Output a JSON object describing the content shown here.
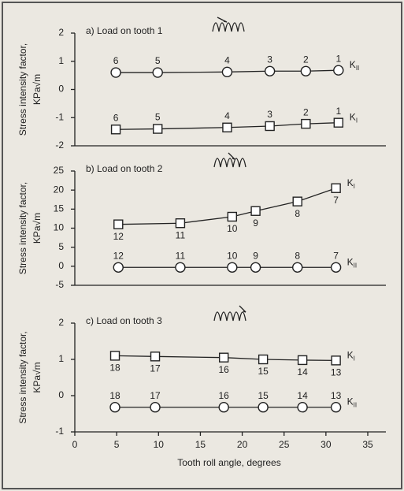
{
  "chart_data": [
    {
      "type": "line",
      "title": "a) Load on tooth 1",
      "ylabel": [
        "Stress intensity factor,",
        "KPa√m"
      ],
      "xlim": [
        0,
        35
      ],
      "ylim": [
        -2,
        2
      ],
      "yticks": [
        -2,
        -1,
        0,
        1,
        2
      ],
      "series": [
        {
          "name": "K",
          "subscript": "II",
          "marker": "circle",
          "color": "#222222",
          "x": [
            4.9,
            9.9,
            18.2,
            23.3,
            27.6,
            31.5
          ],
          "values": [
            0.6,
            0.6,
            0.62,
            0.65,
            0.65,
            0.68
          ],
          "point_labels": [
            6,
            5,
            4,
            3,
            2,
            1
          ]
        },
        {
          "name": "K",
          "subscript": "I",
          "marker": "square",
          "color": "#222222",
          "x": [
            4.9,
            9.9,
            18.2,
            23.3,
            27.6,
            31.5
          ],
          "values": [
            -1.42,
            -1.4,
            -1.35,
            -1.3,
            -1.22,
            -1.18
          ],
          "point_labels": [
            6,
            5,
            4,
            3,
            2,
            1
          ]
        }
      ]
    },
    {
      "type": "line",
      "title": "b) Load on tooth 2",
      "ylabel": [
        "Stress intensity factor,",
        "KPa√m"
      ],
      "xlim": [
        0,
        35
      ],
      "ylim": [
        -5,
        25
      ],
      "yticks": [
        -5,
        0,
        5,
        10,
        15,
        20,
        25
      ],
      "series": [
        {
          "name": "K",
          "subscript": "I",
          "marker": "square",
          "color": "#222222",
          "x": [
            5.2,
            12.6,
            18.8,
            21.6,
            26.6,
            31.2
          ],
          "values": [
            11,
            11.3,
            13,
            14.5,
            17,
            20.5
          ],
          "point_labels": [
            12,
            11,
            10,
            9,
            8,
            7
          ]
        },
        {
          "name": "K",
          "subscript": "II",
          "marker": "circle",
          "color": "#222222",
          "x": [
            5.2,
            12.6,
            18.8,
            21.6,
            26.6,
            31.2
          ],
          "values": [
            -0.3,
            -0.3,
            -0.3,
            -0.3,
            -0.3,
            -0.3
          ],
          "point_labels": [
            12,
            11,
            10,
            9,
            8,
            7
          ]
        }
      ]
    },
    {
      "type": "line",
      "title": "c) Load on tooth 3",
      "ylabel": [
        "Stress intensity factor,",
        "KPa√m"
      ],
      "xlabel": "Tooth roll angle, degrees",
      "xlim": [
        0,
        35
      ],
      "ylim": [
        -1,
        2
      ],
      "yticks": [
        -1,
        0,
        1,
        2
      ],
      "xticks": [
        0,
        5,
        10,
        15,
        20,
        25,
        30,
        35
      ],
      "series": [
        {
          "name": "K",
          "subscript": "I",
          "marker": "square",
          "color": "#222222",
          "x": [
            4.8,
            9.6,
            17.8,
            22.5,
            27.2,
            31.2
          ],
          "values": [
            1.1,
            1.08,
            1.05,
            1.0,
            0.98,
            0.97
          ],
          "point_labels": [
            18,
            17,
            16,
            15,
            14,
            13
          ]
        },
        {
          "name": "K",
          "subscript": "II",
          "marker": "circle",
          "color": "#222222",
          "x": [
            4.8,
            9.6,
            17.8,
            22.5,
            27.2,
            31.2
          ],
          "values": [
            -0.32,
            -0.32,
            -0.32,
            -0.32,
            -0.32,
            -0.32
          ],
          "point_labels": [
            18,
            17,
            16,
            15,
            14,
            13
          ]
        }
      ]
    }
  ]
}
